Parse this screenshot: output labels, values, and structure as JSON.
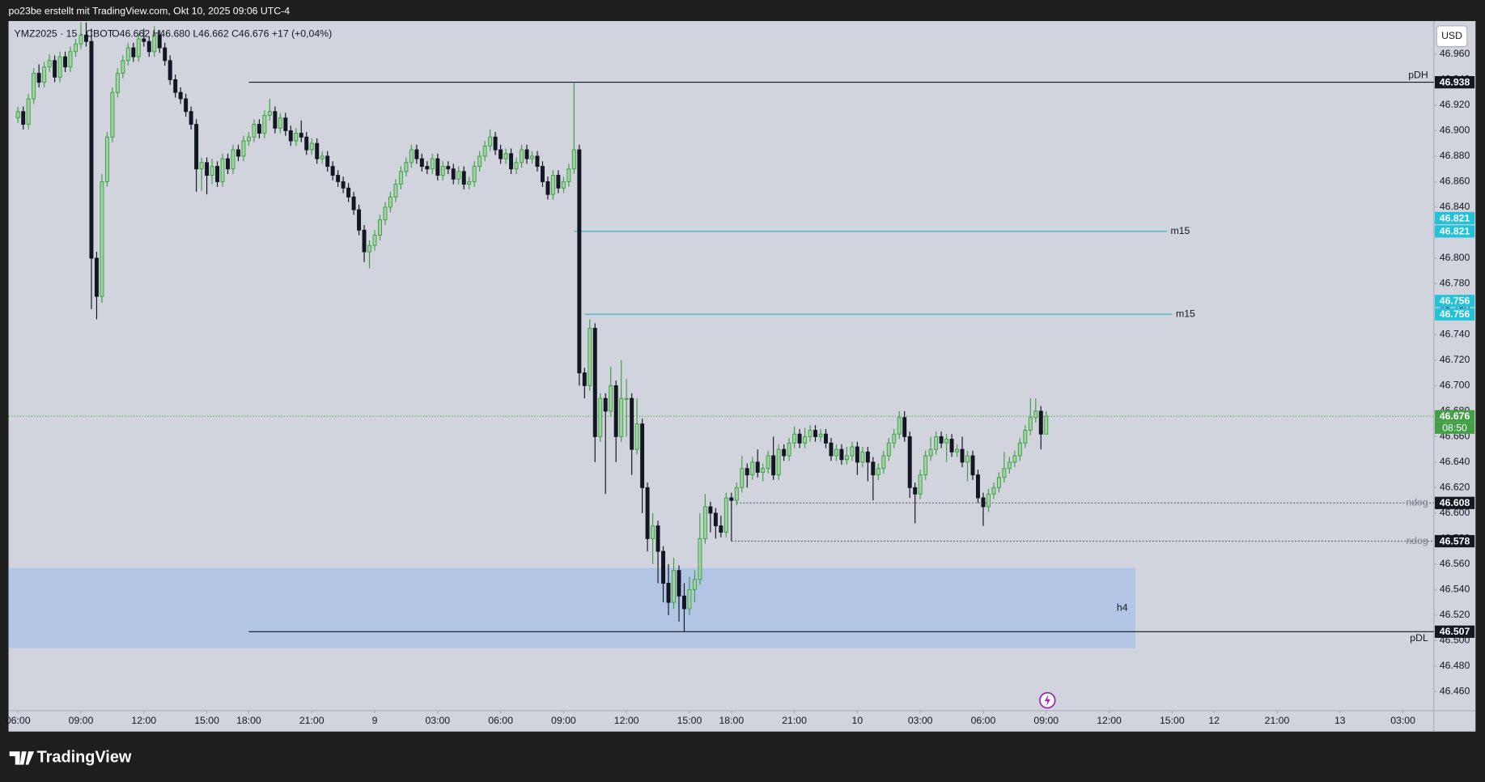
{
  "header": "po23be erstellt mit TradingView.com, Okt 10, 2025 09:06 UTC-4",
  "brand": "TradingView",
  "chart_data": {
    "type": "candlestick",
    "symbol": "YMZ2025 · 15 · CBOT",
    "ohlc_text": "O46.662 H46.680 L46.662 C46.676 +17 (+0,04%)",
    "currency": "USD",
    "countdown": "08:50",
    "up_color": "#3f9e45",
    "up_fill": "#9fd3a2",
    "down_color": "#131722",
    "open": [
      46.91,
      46.915,
      46.905,
      46.925,
      46.945,
      46.938,
      46.95,
      46.955,
      46.942,
      46.958,
      46.95,
      46.962,
      46.968,
      46.975,
      46.97,
      46.8,
      46.77,
      46.86,
      46.895,
      46.93,
      46.945,
      46.955,
      46.965,
      46.958,
      46.972,
      46.97,
      46.962,
      46.975,
      46.965,
      46.955,
      46.94,
      46.93,
      46.925,
      46.915,
      46.905,
      46.87,
      46.875,
      46.865,
      46.872,
      46.86,
      46.878,
      46.87,
      46.885,
      46.88,
      46.892,
      46.895,
      46.905,
      46.898,
      46.912,
      46.915,
      46.902,
      46.91,
      46.9,
      46.892,
      46.898,
      46.895,
      46.885,
      46.89,
      46.878,
      46.88,
      46.872,
      46.865,
      46.86,
      46.855,
      46.848,
      46.838,
      46.822,
      46.805,
      46.81,
      46.818,
      46.83,
      46.84,
      46.848,
      46.858,
      46.868,
      46.875,
      46.885,
      46.878,
      46.872,
      46.87,
      46.878,
      46.865,
      46.872,
      46.87,
      46.862,
      46.868,
      46.858,
      46.86,
      46.872,
      46.88,
      46.888,
      46.895,
      46.885,
      46.878,
      46.882,
      46.87,
      46.875,
      46.885,
      46.878,
      46.88,
      46.872,
      46.86,
      46.85,
      46.865,
      46.855,
      46.86,
      46.87,
      46.885,
      46.71,
      46.7,
      46.745,
      46.66,
      46.69,
      46.68,
      46.7,
      46.66,
      46.69,
      46.69,
      46.65,
      46.67,
      46.62,
      46.58,
      46.59,
      46.57,
      46.545,
      46.53,
      46.555,
      46.535,
      46.525,
      46.54,
      46.548,
      46.58,
      46.605,
      46.6,
      46.59,
      46.585,
      46.612,
      46.61,
      46.62,
      46.635,
      46.63,
      46.64,
      46.632,
      46.635,
      46.645,
      46.63,
      46.65,
      46.645,
      46.655,
      46.662,
      46.655,
      46.66,
      46.665,
      46.66,
      46.662,
      46.655,
      46.645,
      46.65,
      46.642,
      46.645,
      46.652,
      46.64,
      46.648,
      46.64,
      46.63,
      46.635,
      46.645,
      46.655,
      46.662,
      46.675,
      46.66,
      46.62,
      46.615,
      46.63,
      46.645,
      46.65,
      46.66,
      46.655,
      46.658,
      46.648,
      46.65,
      46.64,
      46.645,
      46.63,
      46.612,
      46.605,
      46.615,
      46.62,
      46.628,
      46.635,
      46.64,
      46.645,
      46.655,
      46.665,
      46.675,
      46.68,
      46.662
    ],
    "high": [
      46.919,
      46.919,
      46.929,
      46.949,
      46.952,
      46.954,
      46.96,
      46.959,
      46.962,
      46.962,
      46.966,
      46.972,
      46.985,
      46.985,
      46.98,
      46.805,
      46.866,
      46.899,
      46.934,
      46.949,
      46.959,
      46.969,
      46.969,
      46.976,
      46.98,
      46.974,
      46.982,
      46.979,
      46.969,
      46.959,
      46.944,
      46.934,
      46.929,
      46.919,
      46.909,
      46.879,
      46.879,
      46.878,
      46.876,
      46.882,
      46.882,
      46.889,
      46.889,
      46.896,
      46.899,
      46.909,
      46.909,
      46.916,
      46.925,
      46.919,
      46.914,
      46.914,
      46.904,
      46.902,
      46.908,
      46.899,
      46.894,
      46.894,
      46.884,
      46.884,
      46.876,
      46.869,
      46.864,
      46.859,
      46.852,
      46.842,
      46.826,
      46.814,
      46.822,
      46.834,
      46.844,
      46.852,
      46.862,
      46.872,
      46.879,
      46.889,
      46.889,
      46.882,
      46.876,
      46.882,
      46.882,
      46.876,
      46.876,
      46.874,
      46.872,
      46.872,
      46.864,
      46.876,
      46.884,
      46.892,
      46.901,
      46.899,
      46.889,
      46.886,
      46.886,
      46.879,
      46.889,
      46.889,
      46.884,
      46.884,
      46.876,
      46.864,
      46.869,
      46.869,
      46.864,
      46.874,
      46.938,
      46.889,
      46.714,
      46.752,
      46.749,
      46.694,
      46.694,
      46.715,
      46.704,
      46.72,
      46.705,
      46.694,
      46.69,
      46.674,
      46.624,
      46.6,
      46.594,
      46.574,
      46.56,
      46.565,
      46.559,
      46.545,
      46.55,
      46.555,
      46.6,
      46.615,
      46.609,
      46.604,
      46.598,
      46.616,
      46.616,
      46.624,
      46.645,
      46.639,
      46.644,
      46.65,
      46.639,
      46.649,
      46.66,
      46.654,
      46.654,
      46.659,
      46.668,
      46.666,
      46.667,
      46.669,
      46.669,
      46.666,
      46.666,
      46.659,
      46.654,
      46.654,
      46.652,
      46.656,
      46.656,
      46.652,
      46.652,
      46.644,
      46.639,
      46.649,
      46.659,
      46.666,
      46.68,
      46.68,
      46.664,
      46.624,
      46.634,
      46.649,
      46.66,
      46.664,
      46.664,
      46.662,
      46.662,
      46.654,
      46.66,
      46.649,
      46.649,
      46.634,
      46.616,
      46.619,
      46.624,
      46.632,
      46.648,
      46.644,
      46.649,
      46.659,
      46.669,
      46.69,
      46.69,
      46.684,
      46.68
    ],
    "low": [
      46.906,
      46.901,
      46.901,
      46.921,
      46.934,
      46.934,
      46.946,
      46.938,
      46.938,
      46.946,
      46.946,
      46.958,
      46.964,
      46.966,
      46.76,
      46.752,
      46.765,
      46.856,
      46.891,
      46.926,
      46.941,
      46.951,
      46.954,
      46.954,
      46.966,
      46.958,
      46.958,
      46.961,
      46.951,
      46.936,
      46.926,
      46.921,
      46.911,
      46.901,
      46.852,
      46.853,
      46.85,
      46.858,
      46.856,
      46.856,
      46.866,
      46.866,
      46.876,
      46.876,
      46.888,
      46.891,
      46.894,
      46.894,
      46.908,
      46.898,
      46.898,
      46.896,
      46.888,
      46.888,
      46.891,
      46.881,
      46.881,
      46.874,
      46.874,
      46.868,
      46.861,
      46.856,
      46.851,
      46.844,
      46.834,
      46.818,
      46.797,
      46.792,
      46.806,
      46.814,
      46.826,
      46.836,
      46.844,
      46.854,
      46.864,
      46.871,
      46.874,
      46.868,
      46.866,
      46.866,
      46.861,
      46.861,
      46.866,
      46.858,
      46.858,
      46.854,
      46.854,
      46.856,
      46.868,
      46.876,
      46.884,
      46.881,
      46.874,
      46.874,
      46.866,
      46.866,
      46.871,
      46.874,
      46.874,
      46.868,
      46.856,
      46.846,
      46.846,
      46.851,
      46.851,
      46.856,
      46.866,
      46.7,
      46.69,
      46.696,
      46.64,
      46.656,
      46.615,
      46.676,
      46.64,
      46.656,
      46.66,
      46.63,
      46.646,
      46.6,
      46.57,
      46.56,
      46.545,
      46.53,
      46.52,
      46.525,
      46.515,
      46.507,
      46.52,
      46.53,
      46.544,
      46.576,
      46.585,
      46.58,
      46.581,
      46.581,
      46.578,
      46.606,
      46.616,
      46.62,
      46.626,
      46.628,
      46.625,
      46.631,
      46.626,
      46.626,
      46.641,
      46.641,
      46.651,
      46.651,
      46.651,
      46.656,
      46.656,
      46.656,
      46.651,
      46.641,
      46.641,
      46.638,
      46.638,
      46.641,
      46.63,
      46.636,
      46.625,
      46.61,
      46.626,
      46.631,
      46.641,
      46.651,
      46.658,
      46.656,
      46.612,
      46.592,
      46.611,
      46.626,
      46.641,
      46.646,
      46.651,
      46.64,
      46.644,
      46.644,
      46.636,
      46.625,
      46.626,
      46.608,
      46.59,
      46.601,
      46.611,
      46.616,
      46.624,
      46.631,
      46.636,
      46.641,
      46.651,
      46.661,
      46.671,
      46.65,
      46.662
    ],
    "close": [
      46.915,
      46.905,
      46.925,
      46.945,
      46.938,
      46.95,
      46.955,
      46.942,
      46.958,
      46.95,
      46.962,
      46.968,
      46.975,
      46.97,
      46.8,
      46.77,
      46.86,
      46.895,
      46.93,
      46.945,
      46.955,
      46.965,
      46.958,
      46.972,
      46.97,
      46.962,
      46.975,
      46.965,
      46.955,
      46.94,
      46.93,
      46.925,
      46.915,
      46.905,
      46.87,
      46.875,
      46.865,
      46.872,
      46.86,
      46.878,
      46.87,
      46.885,
      46.88,
      46.892,
      46.895,
      46.905,
      46.898,
      46.912,
      46.915,
      46.902,
      46.91,
      46.9,
      46.892,
      46.898,
      46.895,
      46.885,
      46.89,
      46.878,
      46.88,
      46.872,
      46.865,
      46.86,
      46.855,
      46.848,
      46.838,
      46.822,
      46.805,
      46.81,
      46.818,
      46.83,
      46.84,
      46.848,
      46.858,
      46.868,
      46.875,
      46.885,
      46.878,
      46.872,
      46.87,
      46.878,
      46.865,
      46.872,
      46.87,
      46.862,
      46.868,
      46.858,
      46.86,
      46.872,
      46.88,
      46.888,
      46.895,
      46.885,
      46.878,
      46.882,
      46.87,
      46.875,
      46.885,
      46.878,
      46.88,
      46.872,
      46.86,
      46.85,
      46.865,
      46.855,
      46.86,
      46.87,
      46.885,
      46.71,
      46.7,
      46.745,
      46.66,
      46.69,
      46.68,
      46.7,
      46.66,
      46.69,
      46.69,
      46.65,
      46.67,
      46.62,
      46.58,
      46.59,
      46.57,
      46.545,
      46.53,
      46.555,
      46.535,
      46.525,
      46.54,
      46.548,
      46.58,
      46.605,
      46.6,
      46.59,
      46.585,
      46.612,
      46.61,
      46.62,
      46.635,
      46.63,
      46.64,
      46.632,
      46.635,
      46.645,
      46.63,
      46.65,
      46.645,
      46.655,
      46.662,
      46.655,
      46.66,
      46.665,
      46.66,
      46.662,
      46.655,
      46.645,
      46.65,
      46.642,
      46.645,
      46.652,
      46.64,
      46.648,
      46.64,
      46.63,
      46.635,
      46.645,
      46.655,
      46.662,
      46.675,
      46.66,
      46.62,
      46.615,
      46.63,
      46.645,
      46.65,
      46.66,
      46.655,
      46.658,
      46.648,
      46.65,
      46.64,
      46.645,
      46.63,
      46.612,
      46.605,
      46.615,
      46.62,
      46.628,
      46.635,
      46.64,
      46.645,
      46.655,
      46.665,
      46.675,
      46.68,
      46.662,
      46.676
    ],
    "xlim": [
      -1.8,
      269.9
    ],
    "xticks": [
      {
        "value": 0,
        "label": "06:00"
      },
      {
        "value": 12,
        "label": "09:00"
      },
      {
        "value": 24,
        "label": "12:00"
      },
      {
        "value": 36,
        "label": "15:00"
      },
      {
        "value": 44,
        "label": "18:00"
      },
      {
        "value": 56,
        "label": "21:00"
      },
      {
        "value": 68,
        "label": "9"
      },
      {
        "value": 80,
        "label": "03:00"
      },
      {
        "value": 92,
        "label": "06:00"
      },
      {
        "value": 104,
        "label": "09:00"
      },
      {
        "value": 116,
        "label": "12:00"
      },
      {
        "value": 128,
        "label": "15:00"
      },
      {
        "value": 136,
        "label": "18:00"
      },
      {
        "value": 148,
        "label": "21:00"
      },
      {
        "value": 160,
        "label": "10"
      },
      {
        "value": 172,
        "label": "03:00"
      },
      {
        "value": 184,
        "label": "06:00"
      },
      {
        "value": 196,
        "label": "09:00"
      },
      {
        "value": 208,
        "label": "12:00"
      },
      {
        "value": 220,
        "label": "15:00"
      },
      {
        "value": 228,
        "label": "12"
      },
      {
        "value": 240,
        "label": "21:00"
      },
      {
        "value": 252,
        "label": "13"
      },
      {
        "value": 264,
        "label": "03:00"
      }
    ],
    "ylim": [
      46.445,
      46.986
    ],
    "yticks": [
      {
        "value": 46.46,
        "label": "46.460"
      },
      {
        "value": 46.48,
        "label": "46.480"
      },
      {
        "value": 46.5,
        "label": "46.500"
      },
      {
        "value": 46.52,
        "label": "46.520"
      },
      {
        "value": 46.54,
        "label": "46.540"
      },
      {
        "value": 46.56,
        "label": "46.560"
      },
      {
        "value": 46.58,
        "label": "46.580"
      },
      {
        "value": 46.6,
        "label": "46.600"
      },
      {
        "value": 46.62,
        "label": "46.620"
      },
      {
        "value": 46.64,
        "label": "46.640"
      },
      {
        "value": 46.66,
        "label": "46.660"
      },
      {
        "value": 46.68,
        "label": "46.680"
      },
      {
        "value": 46.7,
        "label": "46.700"
      },
      {
        "value": 46.72,
        "label": "46.720"
      },
      {
        "value": 46.74,
        "label": "46.740"
      },
      {
        "value": 46.76,
        "label": "46.760"
      },
      {
        "value": 46.78,
        "label": "46.780"
      },
      {
        "value": 46.8,
        "label": "46.800"
      },
      {
        "value": 46.82,
        "label": "46.820"
      },
      {
        "value": 46.84,
        "label": "46.840"
      },
      {
        "value": 46.86,
        "label": "46.860"
      },
      {
        "value": 46.88,
        "label": "46.880"
      },
      {
        "value": 46.9,
        "label": "46.900"
      },
      {
        "value": 46.92,
        "label": "46.920"
      },
      {
        "value": 46.94,
        "label": "46.940"
      },
      {
        "value": 46.96,
        "label": "46.960"
      }
    ],
    "levels": [
      {
        "label": "pDH",
        "value": 46.938,
        "color": "#131722",
        "tag_color": "#131722",
        "dashed": false
      },
      {
        "label": "m15",
        "value": 46.821,
        "color": "#2ab0c2",
        "tag_color": "#22c3d8",
        "dashed": false
      },
      {
        "label": "m15",
        "value": 46.756,
        "color": "#2ab0c2",
        "tag_color": "#22c3d8",
        "dashed": false
      },
      {
        "label": "ndog",
        "value": 46.608,
        "color": "#555a66",
        "tag_color": "#131722",
        "dashed": true
      },
      {
        "label": "ndog",
        "value": 46.578,
        "color": "#555a66",
        "tag_color": "#131722",
        "dashed": true
      },
      {
        "label": "pDL",
        "value": 46.507,
        "color": "#131722",
        "tag_color": "#131722",
        "dashed": false
      }
    ],
    "current": {
      "value": 46.676,
      "color": "#43a047"
    },
    "zones": [
      {
        "label": "h4",
        "top": 46.557,
        "bottom": 46.494,
        "color": "#b3c5e4"
      }
    ]
  }
}
